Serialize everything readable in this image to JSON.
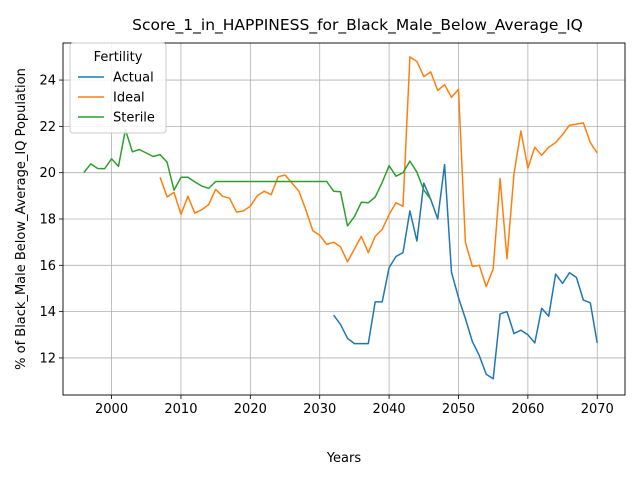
{
  "chart_data": {
    "type": "line",
    "title": "Score_1_in_HAPPINESS_for_Black_Male_Below_Average_IQ",
    "xlabel": "Years",
    "ylabel": "% of Black_Male Below_Average_IQ Population",
    "xlim": [
      1993,
      2074
    ],
    "ylim": [
      10.4,
      25.6
    ],
    "xticks": [
      2000,
      2010,
      2020,
      2030,
      2040,
      2050,
      2060,
      2070
    ],
    "yticks": [
      12,
      14,
      16,
      18,
      20,
      22,
      24
    ],
    "grid": true,
    "legend": {
      "title": "Fertility",
      "placement": "top-left"
    },
    "series": [
      {
        "name": "Actual",
        "color": "#1f77b4",
        "x": [
          2032,
          2033,
          2034,
          2035,
          2036,
          2037,
          2038,
          2039,
          2040,
          2041,
          2042,
          2043,
          2044,
          2045,
          2046,
          2047,
          2048,
          2049,
          2050,
          2051,
          2052,
          2053,
          2054,
          2055,
          2056,
          2057,
          2058,
          2059,
          2060,
          2061,
          2062,
          2063,
          2064,
          2065,
          2066,
          2067,
          2068,
          2069,
          2070
        ],
        "y": [
          13.85,
          13.45,
          12.85,
          12.62,
          12.62,
          12.62,
          14.42,
          14.42,
          15.9,
          16.38,
          16.55,
          18.35,
          17.05,
          19.55,
          18.85,
          18.0,
          20.35,
          15.7,
          14.6,
          13.7,
          12.7,
          12.1,
          11.3,
          11.1,
          13.9,
          14.0,
          13.05,
          13.2,
          13.0,
          12.65,
          14.15,
          13.8,
          15.62,
          15.22,
          15.68,
          15.48,
          14.5,
          14.38,
          12.65
        ]
      },
      {
        "name": "Ideal",
        "color": "#ff7f0e",
        "x": [
          2007,
          2008,
          2009,
          2010,
          2011,
          2012,
          2013,
          2014,
          2015,
          2016,
          2017,
          2018,
          2019,
          2020,
          2021,
          2022,
          2023,
          2024,
          2025,
          2026,
          2027,
          2028,
          2029,
          2030,
          2031,
          2032,
          2033,
          2034,
          2035,
          2036,
          2037,
          2038,
          2039,
          2040,
          2041,
          2042,
          2043,
          2044,
          2045,
          2046,
          2047,
          2048,
          2049,
          2050,
          2051,
          2052,
          2053,
          2054,
          2055,
          2056,
          2057,
          2058,
          2059,
          2060,
          2061,
          2062,
          2063,
          2064,
          2065,
          2066,
          2067,
          2068,
          2069,
          2070
        ],
        "y": [
          19.8,
          18.95,
          19.15,
          18.2,
          18.98,
          18.25,
          18.4,
          18.62,
          19.28,
          18.98,
          18.9,
          18.3,
          18.35,
          18.55,
          19.0,
          19.2,
          19.05,
          19.82,
          19.9,
          19.55,
          19.2,
          18.4,
          17.5,
          17.3,
          16.9,
          17.0,
          16.8,
          16.15,
          16.7,
          17.25,
          16.55,
          17.25,
          17.55,
          18.2,
          18.7,
          18.55,
          25.0,
          24.8,
          24.15,
          24.35,
          23.55,
          23.8,
          23.25,
          23.6,
          17.0,
          15.95,
          16.0,
          15.08,
          15.85,
          19.75,
          16.28,
          19.95,
          21.8,
          20.2,
          21.1,
          20.75,
          21.1,
          21.3,
          21.65,
          22.05,
          22.1,
          22.15,
          21.3,
          20.85
        ]
      },
      {
        "name": "Sterile",
        "color": "#2ca02c",
        "x": [
          1996,
          1997,
          1998,
          1999,
          2000,
          2001,
          2002,
          2003,
          2004,
          2005,
          2006,
          2007,
          2008,
          2009,
          2010,
          2011,
          2012,
          2013,
          2014,
          2015,
          2016,
          2017,
          2018,
          2019,
          2020,
          2021,
          2022,
          2023,
          2024,
          2025,
          2026,
          2027,
          2028,
          2029,
          2030,
          2031,
          2032,
          2033,
          2034,
          2035,
          2036,
          2037,
          2038,
          2039,
          2040,
          2041,
          2042,
          2043,
          2044,
          2045,
          2046
        ],
        "y": [
          20.0,
          20.38,
          20.18,
          20.17,
          20.6,
          20.27,
          21.85,
          20.9,
          21.0,
          20.85,
          20.7,
          20.78,
          20.45,
          19.25,
          19.8,
          19.8,
          19.6,
          19.42,
          19.32,
          19.62,
          19.62,
          19.62,
          19.62,
          19.62,
          19.62,
          19.62,
          19.62,
          19.62,
          19.62,
          19.62,
          19.62,
          19.62,
          19.62,
          19.62,
          19.62,
          19.62,
          19.2,
          19.18,
          17.7,
          18.1,
          18.72,
          18.7,
          18.95,
          19.58,
          20.3,
          19.85,
          20.0,
          20.5,
          20.02,
          19.25,
          18.85
        ]
      }
    ]
  }
}
